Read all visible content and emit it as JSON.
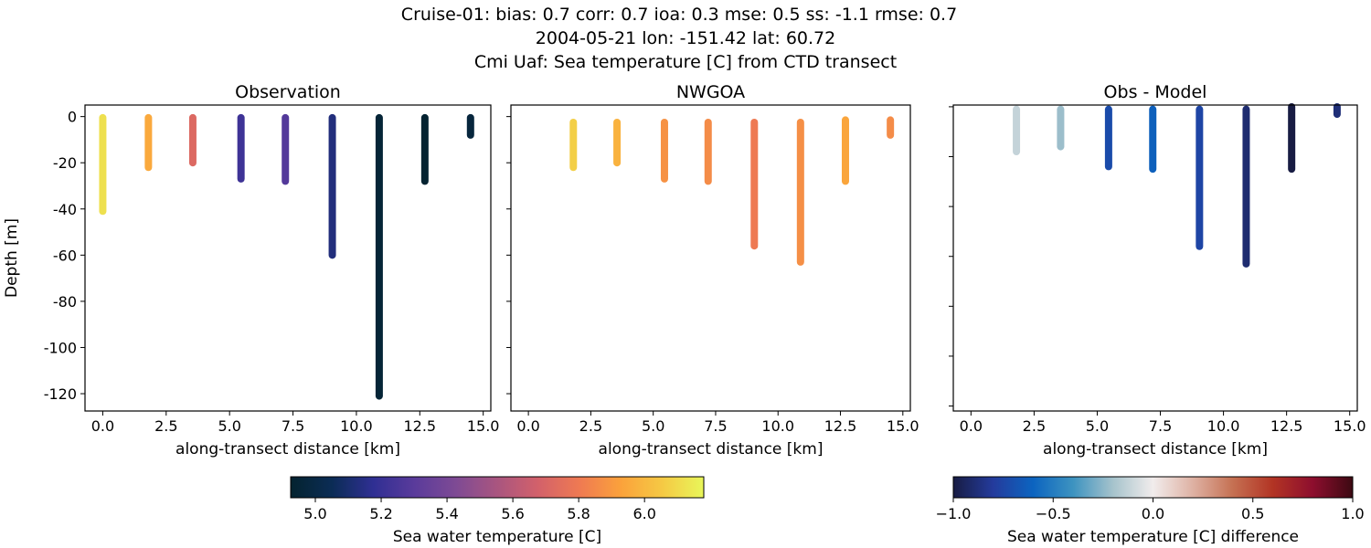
{
  "title_lines": [
    "Cruise-01: bias: 0.7  corr: 0.7  ioa: 0.3  mse: 0.5  ss: -1.1  rmse: 0.7",
    "2004-05-21 lon: -151.42 lat: 60.72",
    "Cmi Uaf: Sea temperature [C] from CTD transect"
  ],
  "chart_data": [
    {
      "type": "scatter",
      "title": "Observation",
      "xlabel": "along-transect distance [km]",
      "ylabel": "Depth [m]",
      "xlim": [
        -0.7,
        15.3
      ],
      "ylim": [
        -127.5,
        5
      ],
      "xticks": [
        "0.0",
        "2.5",
        "5.0",
        "7.5",
        "10.0",
        "12.5",
        "15.0"
      ],
      "yticks": [
        "0",
        "-20",
        "-40",
        "-60",
        "-80",
        "-100",
        "-120"
      ],
      "colormap": "thermal",
      "profiles": [
        {
          "x": 0.0,
          "top": -0.5,
          "bottom": -41,
          "value": 6.12
        },
        {
          "x": 1.8,
          "top": -0.5,
          "bottom": -22,
          "value": 5.95
        },
        {
          "x": 3.55,
          "top": -0.5,
          "bottom": -20,
          "value": 5.72
        },
        {
          "x": 5.45,
          "top": -0.5,
          "bottom": -27,
          "value": 5.22
        },
        {
          "x": 7.2,
          "top": -0.5,
          "bottom": -28,
          "value": 5.28
        },
        {
          "x": 9.05,
          "top": -0.5,
          "bottom": -60,
          "value": 5.13
        },
        {
          "x": 10.9,
          "top": -0.5,
          "bottom": -121,
          "value": 4.95
        },
        {
          "x": 12.7,
          "top": -0.5,
          "bottom": -28,
          "value": 4.93
        },
        {
          "x": 14.5,
          "top": -0.5,
          "bottom": -8,
          "value": 4.97
        }
      ]
    },
    {
      "type": "scatter",
      "title": "NWGOA",
      "xlabel": "along-transect distance [km]",
      "xlim": [
        -0.7,
        15.3
      ],
      "ylim": [
        -127.5,
        5
      ],
      "xticks": [
        "0.0",
        "2.5",
        "5.0",
        "7.5",
        "10.0",
        "12.5",
        "15.0"
      ],
      "colormap": "thermal",
      "profiles": [
        {
          "x": 1.8,
          "top": -2.5,
          "bottom": -22,
          "value": 6.07
        },
        {
          "x": 3.55,
          "top": -2.5,
          "bottom": -20,
          "value": 5.98
        },
        {
          "x": 5.45,
          "top": -2.5,
          "bottom": -27,
          "value": 5.88
        },
        {
          "x": 7.2,
          "top": -2.5,
          "bottom": -28,
          "value": 5.86
        },
        {
          "x": 9.05,
          "top": -2.5,
          "bottom": -56,
          "value": 5.8
        },
        {
          "x": 10.9,
          "top": -2.5,
          "bottom": -63,
          "value": 5.87
        },
        {
          "x": 12.7,
          "top": -1.5,
          "bottom": -28,
          "value": 5.94
        },
        {
          "x": 14.5,
          "top": -1.5,
          "bottom": -8,
          "value": 5.86
        }
      ]
    },
    {
      "type": "scatter",
      "title": "Obs - Model",
      "xlabel": "along-transect distance [km]",
      "xlim": [
        -0.7,
        15.3
      ],
      "ylim": [
        -122,
        0.7
      ],
      "xticks": [
        "0.0",
        "2.5",
        "5.0",
        "7.5",
        "10.0",
        "12.5",
        "15.0"
      ],
      "colormap": "balance",
      "profiles": [
        {
          "x": 1.8,
          "top": -1,
          "bottom": -18,
          "value": -0.12
        },
        {
          "x": 3.55,
          "top": -1,
          "bottom": -16,
          "value": -0.22
        },
        {
          "x": 5.45,
          "top": -1,
          "bottom": -24,
          "value": -0.72
        },
        {
          "x": 7.2,
          "top": -1,
          "bottom": -25,
          "value": -0.62
        },
        {
          "x": 9.05,
          "top": -1,
          "bottom": -56,
          "value": -0.75
        },
        {
          "x": 10.9,
          "top": -1,
          "bottom": -63,
          "value": -0.9
        },
        {
          "x": 12.7,
          "top": 0.5,
          "bottom": -25,
          "value": -1.0
        },
        {
          "x": 14.5,
          "top": 0.5,
          "bottom": -3,
          "value": -0.88
        }
      ]
    }
  ],
  "colorbars": [
    {
      "label": "Sea water temperature [C]",
      "range": [
        4.925,
        6.18
      ],
      "ticks": [
        "5.0",
        "5.2",
        "5.4",
        "5.6",
        "5.8",
        "6.0"
      ],
      "colormap": "thermal"
    },
    {
      "label": "Sea water temperature [C] difference",
      "range": [
        -1,
        1
      ],
      "ticks": [
        "−1.0",
        "−0.5",
        "0.0",
        "0.5",
        "1.0"
      ],
      "colormap": "balance"
    }
  ],
  "colormaps": {
    "thermal": [
      "#04232f",
      "#0b2c55",
      "#2f2f93",
      "#5a3b9b",
      "#7e4a94",
      "#a9557f",
      "#d3616a",
      "#ef7a52",
      "#fba23b",
      "#f5c944",
      "#e8f65a"
    ],
    "balance": [
      "#181c43",
      "#243b9c",
      "#0c64c0",
      "#3d93c0",
      "#a6c3cc",
      "#f1ecec",
      "#deb1a3",
      "#c57052",
      "#b23424",
      "#8d0e2e",
      "#3c0912"
    ]
  }
}
